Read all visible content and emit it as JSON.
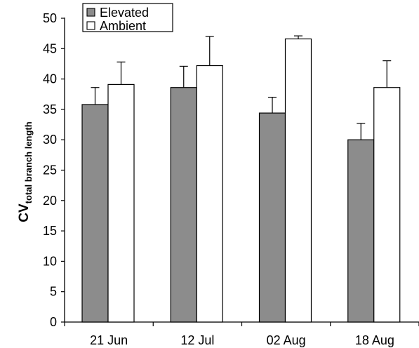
{
  "chart_data": {
    "type": "bar",
    "ylabel": {
      "main": "CV",
      "subscript": "total branch length"
    },
    "xlabel": "",
    "ylim": [
      0,
      50
    ],
    "ytick_step": 5,
    "grid": false,
    "legend_position": "top-left",
    "categories": [
      "21 Jun",
      "12 Jul",
      "02 Aug",
      "18 Aug"
    ],
    "series": [
      {
        "name": "Elevated",
        "color": "#8c8c8c",
        "values": [
          35.8,
          38.6,
          34.4,
          30.0
        ],
        "error_plus": [
          2.8,
          3.5,
          2.6,
          2.7
        ]
      },
      {
        "name": "Ambient",
        "color": "#ffffff",
        "values": [
          39.1,
          42.2,
          46.6,
          38.6
        ],
        "error_plus": [
          3.7,
          4.8,
          0.5,
          4.4
        ]
      }
    ]
  }
}
